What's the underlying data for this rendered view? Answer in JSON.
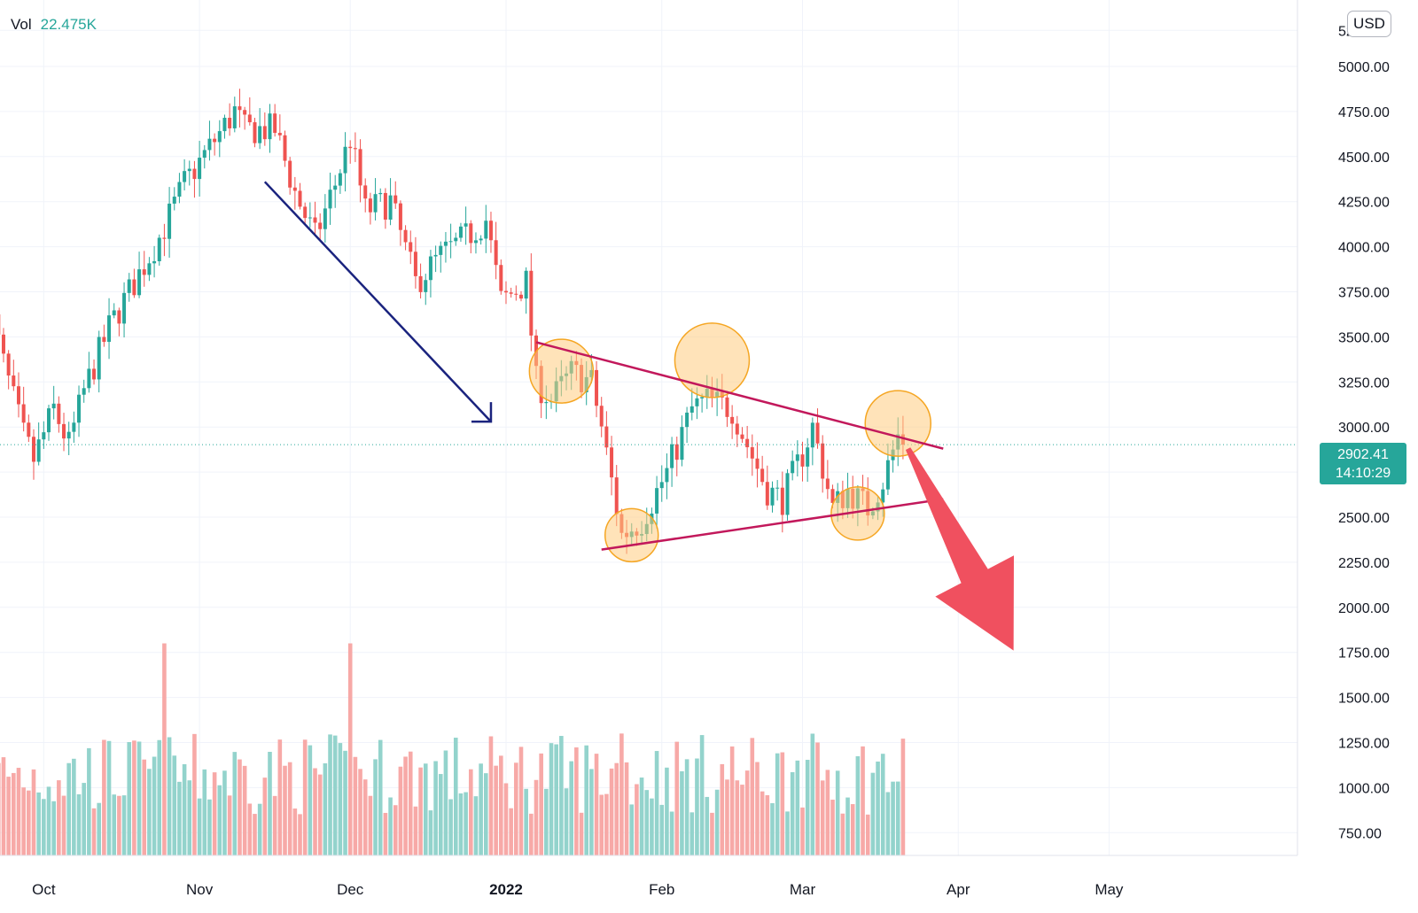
{
  "legend": {
    "label": "Vol",
    "value": "22.475K"
  },
  "currency": "USD",
  "price_label": {
    "price": "2902.41",
    "countdown": "14:10:29"
  },
  "colors": {
    "up": "#26a69a",
    "down": "#ef5350",
    "up_vol": "#93d3cc",
    "down_vol": "#f7a9a7",
    "trendline": "#c2185b",
    "arrow_blue": "#1a237e",
    "arrow_red": "#f0505f",
    "circle_fill": "#ffcc80",
    "circle_stroke": "#f5a623"
  },
  "chart_data": {
    "type": "candlestick",
    "price_axis": {
      "labels": [
        "5000.00",
        "4750.00",
        "4500.00",
        "4250.00",
        "4000.00",
        "3750.00",
        "3500.00",
        "3250.00",
        "3000.00",
        "2750.00",
        "2500.00",
        "2250.00",
        "2000.00",
        "1750.00",
        "1500.00",
        "1250.00",
        "1000.00",
        "750.00"
      ],
      "top_clipped": "52",
      "range": [
        750,
        5200
      ]
    },
    "time_axis": {
      "labels": [
        "Oct",
        "Nov",
        "Dec",
        "2022",
        "Feb",
        "Mar",
        "Apr",
        "May"
      ],
      "range": [
        "2021-09-20",
        "2022-05-20"
      ]
    },
    "last_price": 2902.41,
    "waypoints": [
      [
        "2021-09-20",
        3700
      ],
      [
        "2021-09-23",
        3350
      ],
      [
        "2021-09-27",
        2950
      ],
      [
        "2021-09-29",
        2820
      ],
      [
        "2021-10-03",
        3100
      ],
      [
        "2021-10-06",
        2900
      ],
      [
        "2021-10-09",
        3200
      ],
      [
        "2021-10-14",
        3550
      ],
      [
        "2021-10-20",
        3850
      ],
      [
        "2021-10-24",
        4050
      ],
      [
        "2021-10-29",
        4350
      ],
      [
        "2021-11-03",
        4550
      ],
      [
        "2021-11-08",
        4750
      ],
      [
        "2021-11-10",
        4650
      ],
      [
        "2021-11-16",
        4650
      ],
      [
        "2021-11-20",
        4300
      ],
      [
        "2021-11-24",
        4050
      ],
      [
        "2021-11-28",
        4350
      ],
      [
        "2021-12-01",
        4600
      ],
      [
        "2021-12-04",
        4200
      ],
      [
        "2021-12-09",
        4250
      ],
      [
        "2021-12-14",
        3800
      ],
      [
        "2021-12-19",
        3950
      ],
      [
        "2021-12-24",
        4050
      ],
      [
        "2021-12-28",
        4150
      ],
      [
        "2021-12-31",
        3700
      ],
      [
        "2022-01-05",
        3800
      ],
      [
        "2022-01-07",
        3250
      ],
      [
        "2022-01-10",
        3150
      ],
      [
        "2022-01-14",
        3300
      ],
      [
        "2022-01-18",
        3250
      ],
      [
        "2022-01-20",
        3000
      ],
      [
        "2022-01-22",
        2700
      ],
      [
        "2022-01-24",
        2400
      ],
      [
        "2022-01-28",
        2480
      ],
      [
        "2022-02-02",
        2750
      ],
      [
        "2022-02-07",
        3100
      ],
      [
        "2022-02-10",
        3150
      ],
      [
        "2022-02-15",
        3100
      ],
      [
        "2022-02-18",
        2900
      ],
      [
        "2022-02-22",
        2650
      ],
      [
        "2022-02-25",
        2600
      ],
      [
        "2022-03-01",
        2850
      ],
      [
        "2022-03-03",
        3000
      ],
      [
        "2022-03-07",
        2550
      ],
      [
        "2022-03-10",
        2650
      ],
      [
        "2022-03-14",
        2550
      ],
      [
        "2022-03-17",
        2700
      ],
      [
        "2022-03-20",
        2950
      ],
      [
        "2022-03-22",
        2900
      ]
    ],
    "volume_spikes": [
      [
        "2021-10-25",
        1800
      ],
      [
        "2021-12-01",
        1800
      ],
      [
        "2022-01-24",
        1300
      ],
      [
        "2022-02-28",
        1150
      ]
    ],
    "annotations": {
      "trendline_upper": [
        [
          "2022-01-07",
          3470
        ],
        [
          "2022-03-29",
          2880
        ]
      ],
      "trendline_lower": [
        [
          "2022-01-20",
          2320
        ],
        [
          "2022-03-29",
          2600
        ]
      ],
      "blue_arrow": [
        [
          "2021-11-14",
          4360
        ],
        [
          "2021-12-29",
          3030
        ]
      ],
      "red_arrow": [
        [
          "2022-03-22",
          2880
        ],
        [
          "2022-04-12",
          1760
        ]
      ],
      "circles": [
        {
          "x": "2022-01-12",
          "y": 3310,
          "r": 36
        },
        {
          "x": "2022-02-11",
          "y": 3370,
          "r": 42
        },
        {
          "x": "2022-03-20",
          "y": 3020,
          "r": 37
        },
        {
          "x": "2022-01-26",
          "y": 2400,
          "r": 30
        },
        {
          "x": "2022-03-12",
          "y": 2520,
          "r": 30
        }
      ]
    }
  }
}
